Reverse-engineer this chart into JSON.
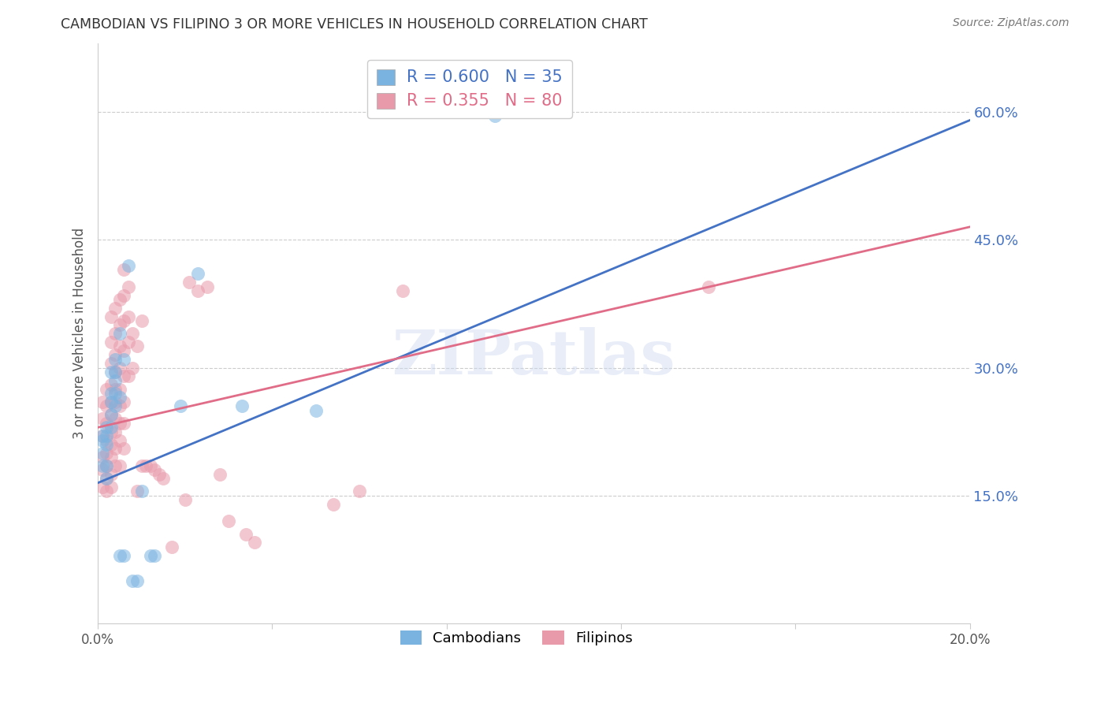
{
  "title": "CAMBODIAN VS FILIPINO 3 OR MORE VEHICLES IN HOUSEHOLD CORRELATION CHART",
  "source": "Source: ZipAtlas.com",
  "ylabel": "3 or more Vehicles in Household",
  "x_min": 0.0,
  "x_max": 0.2,
  "y_min": 0.0,
  "y_max": 0.68,
  "right_yticks": [
    0.15,
    0.3,
    0.45,
    0.6
  ],
  "right_yticklabels": [
    "15.0%",
    "30.0%",
    "45.0%",
    "60.0%"
  ],
  "x_ticks": [
    0.0,
    0.04,
    0.08,
    0.12,
    0.16,
    0.2
  ],
  "cambodian_color": "#7ab3e0",
  "filipino_color": "#e89aab",
  "blue_line_color": "#4472c4",
  "pink_line_color": "#e06c88",
  "legend_R_cambodian": "R = 0.600",
  "legend_N_cambodian": "N = 35",
  "legend_R_filipino": "R = 0.355",
  "legend_N_filipino": "N = 80",
  "watermark": "ZIPatlas",
  "cambodian_scatter": [
    [
      0.001,
      0.22
    ],
    [
      0.001,
      0.215
    ],
    [
      0.001,
      0.2
    ],
    [
      0.001,
      0.185
    ],
    [
      0.002,
      0.23
    ],
    [
      0.002,
      0.22
    ],
    [
      0.002,
      0.21
    ],
    [
      0.002,
      0.185
    ],
    [
      0.002,
      0.17
    ],
    [
      0.003,
      0.295
    ],
    [
      0.003,
      0.27
    ],
    [
      0.003,
      0.26
    ],
    [
      0.003,
      0.245
    ],
    [
      0.003,
      0.23
    ],
    [
      0.004,
      0.31
    ],
    [
      0.004,
      0.295
    ],
    [
      0.004,
      0.285
    ],
    [
      0.004,
      0.27
    ],
    [
      0.004,
      0.255
    ],
    [
      0.005,
      0.34
    ],
    [
      0.005,
      0.265
    ],
    [
      0.005,
      0.08
    ],
    [
      0.006,
      0.31
    ],
    [
      0.006,
      0.08
    ],
    [
      0.007,
      0.42
    ],
    [
      0.008,
      0.05
    ],
    [
      0.009,
      0.05
    ],
    [
      0.01,
      0.155
    ],
    [
      0.012,
      0.08
    ],
    [
      0.013,
      0.08
    ],
    [
      0.019,
      0.255
    ],
    [
      0.033,
      0.255
    ],
    [
      0.05,
      0.25
    ],
    [
      0.091,
      0.595
    ],
    [
      0.023,
      0.41
    ]
  ],
  "filipino_scatter": [
    [
      0.001,
      0.26
    ],
    [
      0.001,
      0.24
    ],
    [
      0.001,
      0.22
    ],
    [
      0.001,
      0.195
    ],
    [
      0.001,
      0.18
    ],
    [
      0.001,
      0.16
    ],
    [
      0.002,
      0.275
    ],
    [
      0.002,
      0.255
    ],
    [
      0.002,
      0.235
    ],
    [
      0.002,
      0.215
    ],
    [
      0.002,
      0.2
    ],
    [
      0.002,
      0.185
    ],
    [
      0.002,
      0.17
    ],
    [
      0.002,
      0.155
    ],
    [
      0.003,
      0.36
    ],
    [
      0.003,
      0.33
    ],
    [
      0.003,
      0.305
    ],
    [
      0.003,
      0.28
    ],
    [
      0.003,
      0.26
    ],
    [
      0.003,
      0.245
    ],
    [
      0.003,
      0.225
    ],
    [
      0.003,
      0.21
    ],
    [
      0.003,
      0.195
    ],
    [
      0.003,
      0.175
    ],
    [
      0.003,
      0.16
    ],
    [
      0.004,
      0.37
    ],
    [
      0.004,
      0.34
    ],
    [
      0.004,
      0.315
    ],
    [
      0.004,
      0.295
    ],
    [
      0.004,
      0.275
    ],
    [
      0.004,
      0.26
    ],
    [
      0.004,
      0.24
    ],
    [
      0.004,
      0.225
    ],
    [
      0.004,
      0.205
    ],
    [
      0.004,
      0.185
    ],
    [
      0.005,
      0.38
    ],
    [
      0.005,
      0.35
    ],
    [
      0.005,
      0.325
    ],
    [
      0.005,
      0.3
    ],
    [
      0.005,
      0.275
    ],
    [
      0.005,
      0.255
    ],
    [
      0.005,
      0.235
    ],
    [
      0.005,
      0.215
    ],
    [
      0.005,
      0.185
    ],
    [
      0.006,
      0.415
    ],
    [
      0.006,
      0.385
    ],
    [
      0.006,
      0.355
    ],
    [
      0.006,
      0.32
    ],
    [
      0.006,
      0.29
    ],
    [
      0.006,
      0.26
    ],
    [
      0.006,
      0.235
    ],
    [
      0.006,
      0.205
    ],
    [
      0.007,
      0.395
    ],
    [
      0.007,
      0.36
    ],
    [
      0.007,
      0.33
    ],
    [
      0.007,
      0.29
    ],
    [
      0.008,
      0.34
    ],
    [
      0.008,
      0.3
    ],
    [
      0.009,
      0.325
    ],
    [
      0.009,
      0.155
    ],
    [
      0.01,
      0.355
    ],
    [
      0.01,
      0.185
    ],
    [
      0.011,
      0.185
    ],
    [
      0.012,
      0.185
    ],
    [
      0.013,
      0.18
    ],
    [
      0.014,
      0.175
    ],
    [
      0.015,
      0.17
    ],
    [
      0.017,
      0.09
    ],
    [
      0.02,
      0.145
    ],
    [
      0.021,
      0.4
    ],
    [
      0.023,
      0.39
    ],
    [
      0.025,
      0.395
    ],
    [
      0.028,
      0.175
    ],
    [
      0.03,
      0.12
    ],
    [
      0.034,
      0.105
    ],
    [
      0.036,
      0.095
    ],
    [
      0.054,
      0.14
    ],
    [
      0.06,
      0.155
    ],
    [
      0.07,
      0.39
    ],
    [
      0.14,
      0.395
    ]
  ],
  "blue_line_x": [
    0.0,
    0.2
  ],
  "blue_line_y": [
    0.165,
    0.59
  ],
  "pink_line_x": [
    0.0,
    0.2
  ],
  "pink_line_y": [
    0.23,
    0.465
  ],
  "background_color": "#ffffff",
  "grid_color": "#cccccc",
  "title_color": "#333333",
  "axis_label_color": "#555555",
  "right_tick_color": "#4472c4",
  "figsize": [
    14.06,
    8.92
  ],
  "dpi": 100
}
